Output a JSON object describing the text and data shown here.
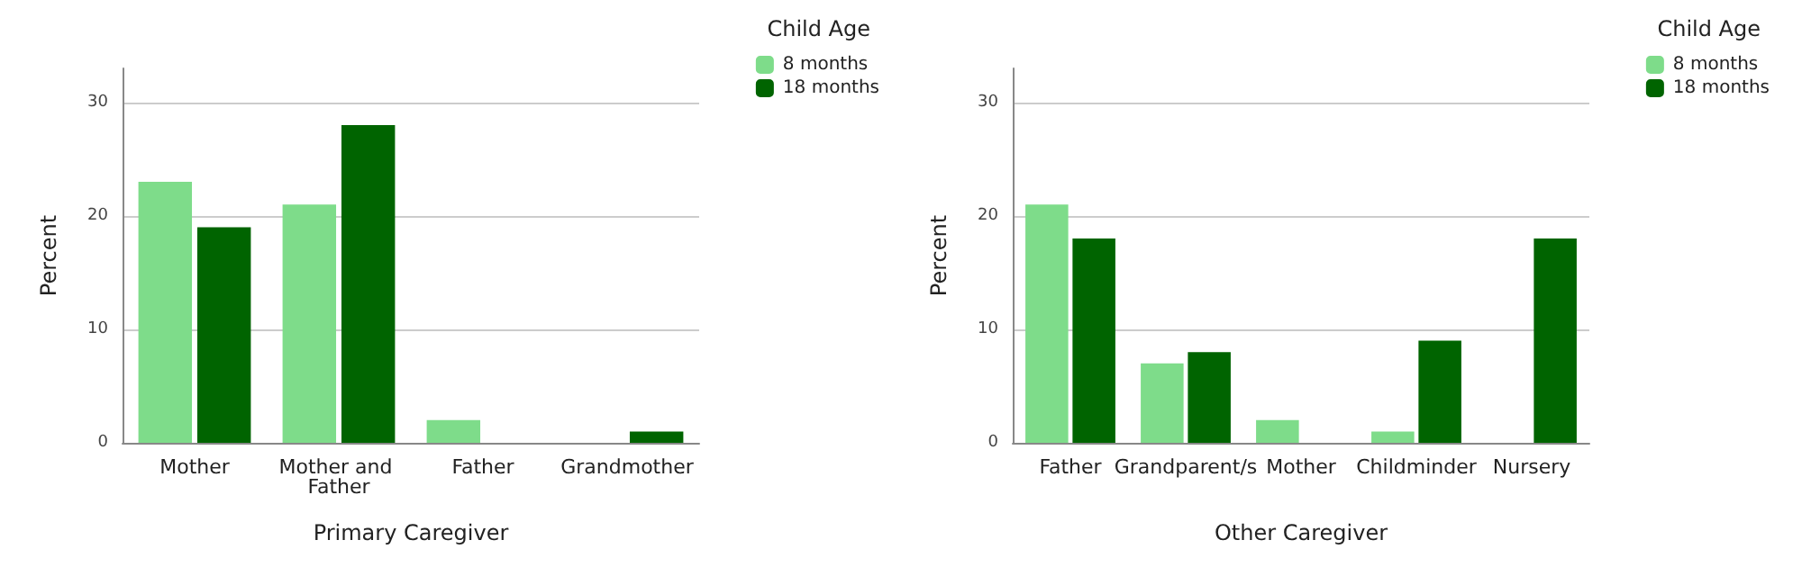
{
  "chart_data": [
    {
      "type": "bar",
      "xlabel": "Primary Caregiver",
      "ylabel": "Percent",
      "legend_title": "Child Age",
      "categories": [
        "Mother",
        "Mother and Father",
        "Father",
        "Grandmother"
      ],
      "series": [
        {
          "name": "8 months",
          "color": "#7edc8a",
          "values": [
            23,
            21,
            2,
            0
          ]
        },
        {
          "name": "18 months",
          "color": "#006400",
          "values": [
            19,
            28,
            0,
            1
          ]
        }
      ],
      "ylim": [
        0,
        33
      ],
      "yticks": [
        0,
        10,
        20,
        30
      ],
      "grid": "y",
      "legend": "top right"
    },
    {
      "type": "bar",
      "xlabel": "Other Caregiver",
      "ylabel": "Percent",
      "legend_title": "Child Age",
      "categories": [
        "Father",
        "Grandparent/s",
        "Mother",
        "Childminder",
        "Nursery"
      ],
      "series": [
        {
          "name": "8 months",
          "color": "#7edc8a",
          "values": [
            21,
            7,
            2,
            1,
            0
          ]
        },
        {
          "name": "18 months",
          "color": "#006400",
          "values": [
            18,
            8,
            0,
            9,
            18
          ]
        }
      ],
      "ylim": [
        0,
        33
      ],
      "yticks": [
        0,
        10,
        20,
        30
      ],
      "grid": "y",
      "legend": "top right"
    }
  ]
}
